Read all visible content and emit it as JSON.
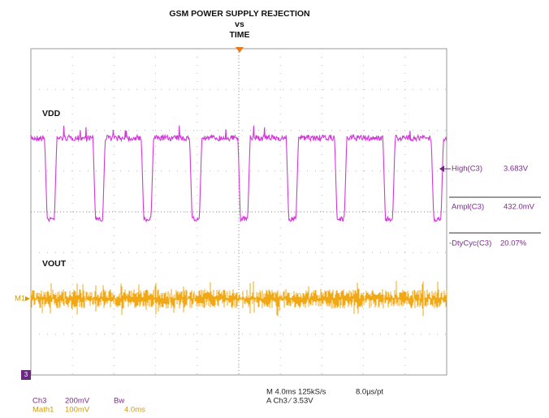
{
  "title": [
    "GSM POWER SUPPLY REJECTION",
    "vs",
    "TIME"
  ],
  "traces": {
    "upper": "VDD",
    "lower": "VOUT",
    "math_marker": "M1"
  },
  "measurements": [
    {
      "name": "High(C3)",
      "value": "3.683V"
    },
    {
      "name": "Ampl(C3)",
      "value": "432.0mV"
    },
    {
      "name": "-DtyCyc(C3)",
      "value": "20.07%"
    }
  ],
  "channels": [
    {
      "name": "Ch3",
      "scale": "200mV",
      "extra": "Bw"
    },
    {
      "name": "Math1",
      "scale": "100mV",
      "extra": "4.0ms"
    }
  ],
  "acquisition": {
    "line1": "M 4.0ms 125kS/s",
    "line1b": "8.0µs/pt",
    "line2": "A  Ch3  ⁄  3.53V"
  },
  "ground_marker": "3"
}
